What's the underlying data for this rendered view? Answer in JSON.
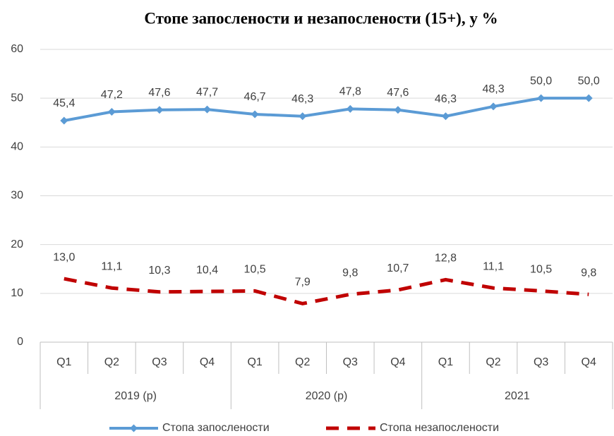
{
  "chart_data": {
    "type": "line",
    "title": "Стопе запослености и незапослености (15+), у %",
    "category_groups": [
      {
        "name": "2019 (p)",
        "categories": [
          "Q1",
          "Q2",
          "Q3",
          "Q4"
        ]
      },
      {
        "name": "2020  (p)",
        "categories": [
          "Q1",
          "Q2",
          "Q3",
          "Q4"
        ]
      },
      {
        "name": "2021",
        "categories": [
          "Q1",
          "Q2",
          "Q3",
          "Q4"
        ]
      }
    ],
    "series": [
      {
        "name": "Стопа запослености",
        "color": "#5b9bd5",
        "style": "solid",
        "marker": "diamond",
        "values": [
          45.4,
          47.2,
          47.6,
          47.7,
          46.7,
          46.3,
          47.8,
          47.6,
          46.3,
          48.3,
          50.0,
          50.0
        ],
        "value_labels": [
          "45,4",
          "47,2",
          "47,6",
          "47,7",
          "46,7",
          "46,3",
          "47,8",
          "47,6",
          "46,3",
          "48,3",
          "50,0",
          "50,0"
        ]
      },
      {
        "name": "Стопа незапослености",
        "color": "#c00000",
        "style": "dashed",
        "marker": "none",
        "values": [
          13.0,
          11.1,
          10.3,
          10.4,
          10.5,
          7.9,
          9.8,
          10.7,
          12.8,
          11.1,
          10.5,
          9.8
        ],
        "value_labels": [
          "13,0",
          "11,1",
          "10,3",
          "10,4",
          "10,5",
          "7,9",
          "9,8",
          "10,7",
          "12,8",
          "11,1",
          "10,5",
          "9,8"
        ]
      }
    ],
    "ylim": [
      0,
      60
    ],
    "yticks": [
      0,
      10,
      20,
      30,
      40,
      50,
      60
    ],
    "grid": true,
    "legend": "bottom"
  }
}
